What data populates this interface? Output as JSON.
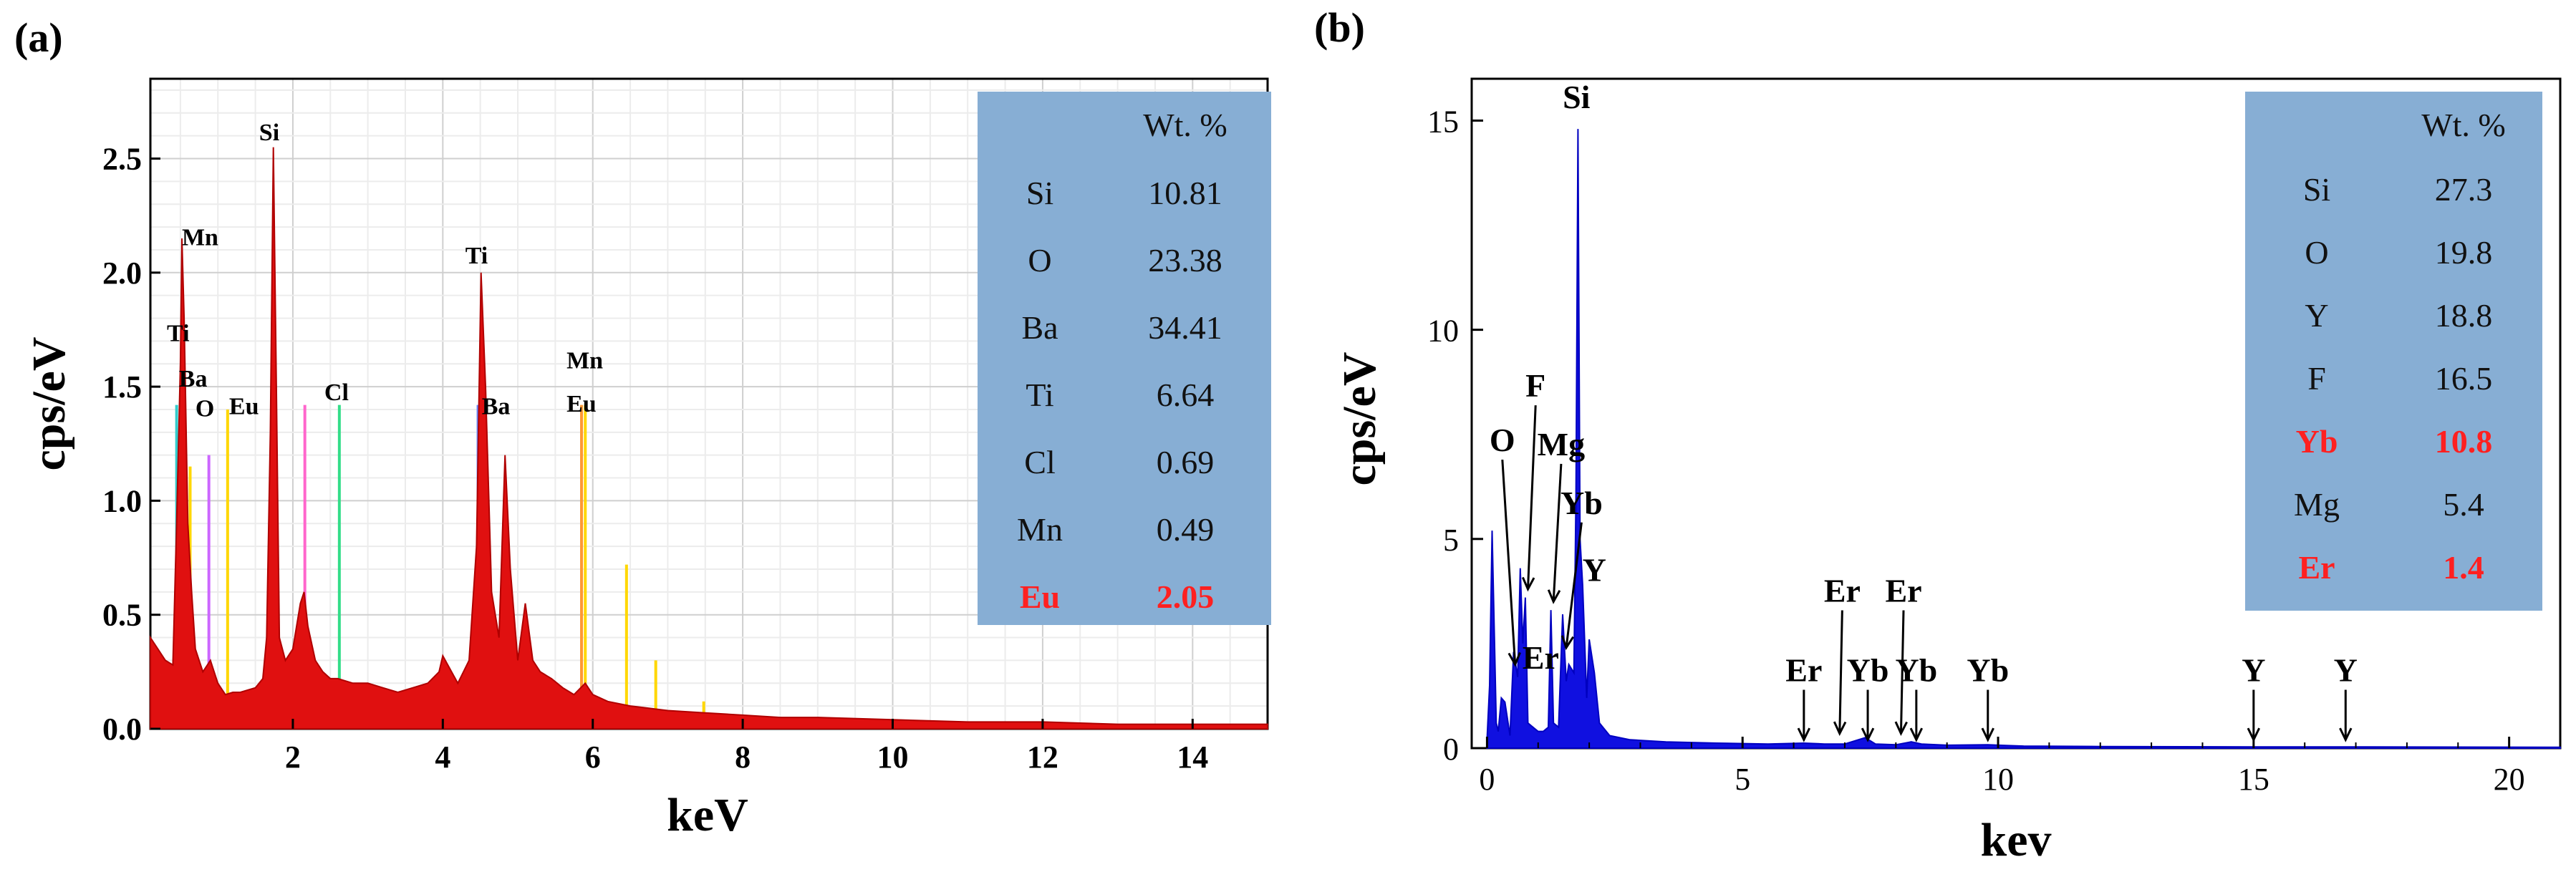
{
  "chart_data": [
    {
      "panel": "(a)",
      "type": "line",
      "title": "",
      "xlabel": "keV",
      "ylabel": "cps/eV",
      "xlim": [
        0.1,
        15
      ],
      "ylim": [
        0,
        2.85
      ],
      "xticks": [
        2,
        4,
        6,
        8,
        10,
        12,
        14
      ],
      "yticks": [
        0.0,
        0.5,
        1.0,
        1.5,
        2.0,
        2.5
      ],
      "xtick_labels": [
        "2",
        "4",
        "6",
        "8",
        "10",
        "12",
        "14"
      ],
      "ytick_labels": [
        "0.0",
        "0.5",
        "1.0",
        "1.5",
        "2.0",
        "2.5"
      ],
      "grid": true,
      "series": [
        {
          "name": "spectrum",
          "color": "#e01010",
          "x": [
            0.1,
            0.2,
            0.3,
            0.4,
            0.45,
            0.5,
            0.52,
            0.55,
            0.6,
            0.65,
            0.7,
            0.8,
            0.9,
            1.0,
            1.1,
            1.2,
            1.3,
            1.4,
            1.5,
            1.6,
            1.65,
            1.7,
            1.74,
            1.78,
            1.82,
            1.9,
            2.0,
            2.1,
            2.15,
            2.2,
            2.3,
            2.4,
            2.5,
            2.6,
            2.8,
            3.0,
            3.2,
            3.4,
            3.6,
            3.8,
            3.95,
            4.0,
            4.2,
            4.35,
            4.45,
            4.51,
            4.57,
            4.65,
            4.75,
            4.83,
            4.9,
            5.0,
            5.1,
            5.2,
            5.3,
            5.45,
            5.6,
            5.75,
            5.9,
            6.0,
            6.2,
            6.5,
            7.0,
            7.5,
            8.0,
            8.5,
            9.0,
            10.0,
            11.0,
            12.0,
            13.0,
            14.0,
            15.0
          ],
          "y": [
            0.4,
            0.35,
            0.3,
            0.28,
            0.9,
            1.6,
            2.15,
            1.8,
            0.9,
            0.6,
            0.35,
            0.25,
            0.3,
            0.2,
            0.15,
            0.16,
            0.16,
            0.17,
            0.18,
            0.22,
            0.4,
            1.3,
            2.55,
            1.5,
            0.4,
            0.3,
            0.35,
            0.55,
            0.6,
            0.45,
            0.3,
            0.25,
            0.22,
            0.22,
            0.2,
            0.2,
            0.18,
            0.16,
            0.18,
            0.2,
            0.25,
            0.32,
            0.2,
            0.3,
            0.8,
            2.0,
            1.5,
            0.6,
            0.4,
            1.2,
            0.7,
            0.3,
            0.55,
            0.3,
            0.25,
            0.22,
            0.18,
            0.15,
            0.2,
            0.15,
            0.12,
            0.1,
            0.08,
            0.07,
            0.06,
            0.05,
            0.05,
            0.04,
            0.03,
            0.03,
            0.02,
            0.02,
            0.02
          ]
        }
      ],
      "element_lines": [
        {
          "x": 0.45,
          "h": 1.42,
          "color": "#33cccc"
        },
        {
          "x": 0.52,
          "h": 1.4,
          "color": "#ff66cc"
        },
        {
          "x": 0.63,
          "h": 1.15,
          "color": "#ffd700"
        },
        {
          "x": 0.88,
          "h": 1.2,
          "color": "#cc66ff"
        },
        {
          "x": 1.13,
          "h": 1.4,
          "color": "#ffd700"
        },
        {
          "x": 2.16,
          "h": 1.42,
          "color": "#ff66cc"
        },
        {
          "x": 2.62,
          "h": 1.42,
          "color": "#33dd88"
        },
        {
          "x": 4.47,
          "h": 1.42,
          "color": "#6688ff"
        },
        {
          "x": 5.85,
          "h": 1.42,
          "color": "#ff9933"
        },
        {
          "x": 5.9,
          "h": 1.42,
          "color": "#ffd700"
        },
        {
          "x": 6.45,
          "h": 0.72,
          "color": "#ffd700"
        },
        {
          "x": 6.84,
          "h": 0.3,
          "color": "#ffd700"
        },
        {
          "x": 7.48,
          "h": 0.12,
          "color": "#ffd700"
        }
      ],
      "annotations": [
        {
          "text": "Mn",
          "x": 0.52,
          "y": 2.12
        },
        {
          "text": "Ti",
          "x": 0.32,
          "y": 1.7
        },
        {
          "text": "Ba",
          "x": 0.48,
          "y": 1.5
        },
        {
          "text": "O",
          "x": 0.7,
          "y": 1.37
        },
        {
          "text": "Eu",
          "x": 1.15,
          "y": 1.38
        },
        {
          "text": "Si",
          "x": 1.55,
          "y": 2.58
        },
        {
          "text": "Cl",
          "x": 2.42,
          "y": 1.44
        },
        {
          "text": "Ti",
          "x": 4.3,
          "y": 2.04
        },
        {
          "text": "Ba",
          "x": 4.52,
          "y": 1.38
        },
        {
          "text": "Mn",
          "x": 5.65,
          "y": 1.58
        },
        {
          "text": "Eu",
          "x": 5.65,
          "y": 1.39
        }
      ],
      "table": {
        "header": "Wt. %",
        "rows": [
          {
            "element": "Si",
            "value": "10.81",
            "highlight": false
          },
          {
            "element": "O",
            "value": "23.38",
            "highlight": false
          },
          {
            "element": "Ba",
            "value": "34.41",
            "highlight": false
          },
          {
            "element": "Ti",
            "value": "6.64",
            "highlight": false
          },
          {
            "element": "Cl",
            "value": "0.69",
            "highlight": false
          },
          {
            "element": "Mn",
            "value": "0.49",
            "highlight": false
          },
          {
            "element": "Eu",
            "value": "2.05",
            "highlight": true
          }
        ]
      }
    },
    {
      "panel": "(b)",
      "type": "line",
      "title": "",
      "xlabel": "kev",
      "ylabel": "cps/eV",
      "xlim": [
        -0.3,
        21
      ],
      "ylim": [
        0,
        16
      ],
      "xticks": [
        0,
        5,
        10,
        15,
        20
      ],
      "yticks": [
        0,
        5,
        10,
        15
      ],
      "xtick_labels": [
        "0",
        "5",
        "10",
        "15",
        "20"
      ],
      "ytick_labels": [
        "0",
        "5",
        "10",
        "15"
      ],
      "grid": false,
      "series": [
        {
          "name": "spectrum",
          "color": "#1010e0",
          "x": [
            0.0,
            0.05,
            0.1,
            0.18,
            0.22,
            0.28,
            0.35,
            0.45,
            0.52,
            0.6,
            0.65,
            0.7,
            0.75,
            0.8,
            0.9,
            1.0,
            1.1,
            1.2,
            1.25,
            1.3,
            1.4,
            1.48,
            1.55,
            1.6,
            1.7,
            1.74,
            1.78,
            1.82,
            1.87,
            1.95,
            2.0,
            2.1,
            2.2,
            2.4,
            2.8,
            3.5,
            4.5,
            5.5,
            6.2,
            6.6,
            7.0,
            7.4,
            7.6,
            8.0,
            8.3,
            8.5,
            9.0,
            9.8,
            10.5,
            12.0,
            15.0,
            17.0,
            21.0
          ],
          "y": [
            0.2,
            1.5,
            5.2,
            0.6,
            0.4,
            1.2,
            1.1,
            0.3,
            2.3,
            1.7,
            4.3,
            2.5,
            3.6,
            0.6,
            0.5,
            0.4,
            0.4,
            0.5,
            3.3,
            0.6,
            0.5,
            3.2,
            1.6,
            2.0,
            1.8,
            6.0,
            14.8,
            5.0,
            3.9,
            1.2,
            2.6,
            1.8,
            0.6,
            0.3,
            0.2,
            0.15,
            0.12,
            0.1,
            0.12,
            0.1,
            0.1,
            0.25,
            0.1,
            0.08,
            0.15,
            0.1,
            0.07,
            0.08,
            0.05,
            0.04,
            0.03,
            0.03,
            0.02
          ]
        }
      ],
      "annotations": [
        {
          "text": "Si",
          "x": 1.75,
          "y": 15.3
        },
        {
          "text": "O",
          "x": 0.3,
          "y": 7.1
        },
        {
          "text": "F",
          "x": 0.95,
          "y": 8.4
        },
        {
          "text": "Mg",
          "x": 1.45,
          "y": 7.0
        },
        {
          "text": "Yb",
          "x": 1.85,
          "y": 5.6
        },
        {
          "text": "Y",
          "x": 2.1,
          "y": 4.0
        },
        {
          "text": "Er",
          "x": 1.05,
          "y": 1.9
        },
        {
          "text": "Er",
          "x": 6.2,
          "y": 1.6
        },
        {
          "text": "Er",
          "x": 6.95,
          "y": 3.5
        },
        {
          "text": "Er",
          "x": 8.15,
          "y": 3.5
        },
        {
          "text": "Yb",
          "x": 7.45,
          "y": 1.6
        },
        {
          "text": "Yb",
          "x": 8.4,
          "y": 1.6
        },
        {
          "text": "Yb",
          "x": 9.8,
          "y": 1.6
        },
        {
          "text": "Y",
          "x": 15.0,
          "y": 1.6
        },
        {
          "text": "Y",
          "x": 16.8,
          "y": 1.6
        }
      ],
      "table": {
        "header": "Wt. %",
        "rows": [
          {
            "element": "Si",
            "value": "27.3",
            "highlight": false
          },
          {
            "element": "O",
            "value": "19.8",
            "highlight": false
          },
          {
            "element": "Y",
            "value": "18.8",
            "highlight": false
          },
          {
            "element": "F",
            "value": "16.5",
            "highlight": false
          },
          {
            "element": "Yb",
            "value": "10.8",
            "highlight": true
          },
          {
            "element": "Mg",
            "value": "5.4",
            "highlight": false
          },
          {
            "element": "Er",
            "value": "1.4",
            "highlight": true
          }
        ]
      }
    }
  ],
  "colors": {
    "panel_a_spectrum": "#e01010",
    "panel_b_spectrum": "#1010e0",
    "table_bg": "#87aed4",
    "highlight_text": "#ff2020"
  }
}
